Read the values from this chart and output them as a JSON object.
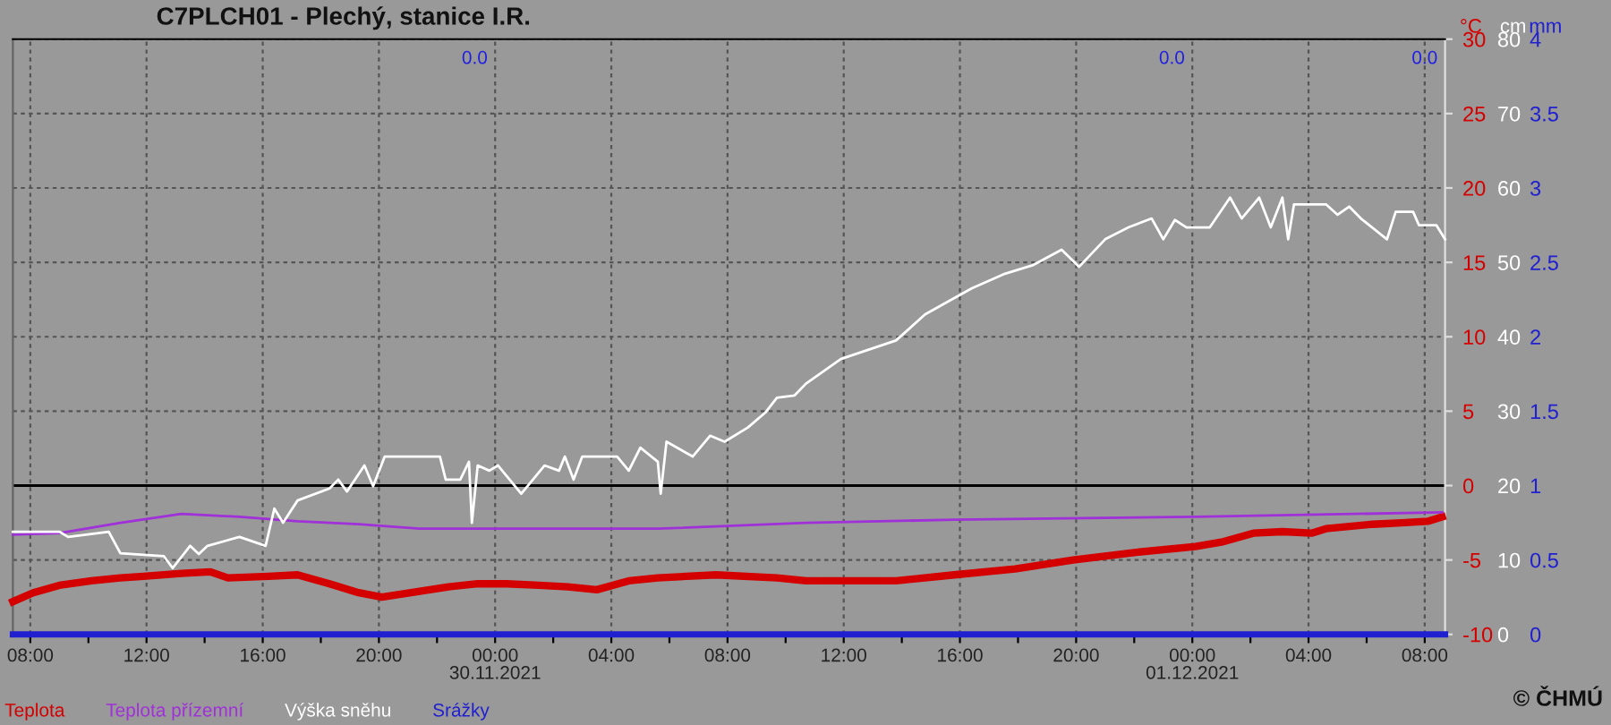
{
  "chart_data": {
    "type": "line",
    "title": "C7PLCH01 - Plechý, stanice I.R.",
    "ylabel": "°C",
    "y2label": "cm",
    "y3label": "mm",
    "xlim": [
      "2021-11-29T07:24",
      "2021-12-01T08:42"
    ],
    "xticks": [
      {
        "value": "2021-11-29T08:00",
        "label": "08:00"
      },
      {
        "value": "2021-11-29T10:00",
        "label": null
      },
      {
        "value": "2021-11-29T12:00",
        "label": "12:00"
      },
      {
        "value": "2021-11-29T14:00",
        "label": null
      },
      {
        "value": "2021-11-29T16:00",
        "label": "16:00"
      },
      {
        "value": "2021-11-29T18:00",
        "label": null
      },
      {
        "value": "2021-11-29T20:00",
        "label": "20:00"
      },
      {
        "value": "2021-11-29T22:00",
        "label": null
      },
      {
        "value": "2021-11-30T00:00",
        "label": "00:00\n30.11.2021"
      },
      {
        "value": "2021-11-30T02:00",
        "label": null
      },
      {
        "value": "2021-11-30T04:00",
        "label": "04:00"
      },
      {
        "value": "2021-11-30T06:00",
        "label": null
      },
      {
        "value": "2021-11-30T08:00",
        "label": "08:00"
      },
      {
        "value": "2021-11-30T10:00",
        "label": null
      },
      {
        "value": "2021-11-30T12:00",
        "label": "12:00"
      },
      {
        "value": "2021-11-30T14:00",
        "label": null
      },
      {
        "value": "2021-11-30T16:00",
        "label": "16:00"
      },
      {
        "value": "2021-11-30T18:00",
        "label": null
      },
      {
        "value": "2021-11-30T20:00",
        "label": "20:00"
      },
      {
        "value": "2021-11-30T22:00",
        "label": null
      },
      {
        "value": "2021-12-01T00:00",
        "label": "00:00\n01.12.2021"
      },
      {
        "value": "2021-12-01T02:00",
        "label": null
      },
      {
        "value": "2021-12-01T04:00",
        "label": "04:00"
      },
      {
        "value": "2021-12-01T06:00",
        "label": null
      },
      {
        "value": "2021-12-01T08:00",
        "label": "08:00"
      }
    ],
    "ylim": [
      -10,
      30
    ],
    "yticks": [
      -10,
      -5,
      0,
      5,
      10,
      15,
      20,
      25,
      30
    ],
    "y2lim": [
      0,
      80
    ],
    "y2ticks": [
      0,
      10,
      20,
      30,
      40,
      50,
      60,
      70,
      80
    ],
    "y3lim": [
      0,
      4
    ],
    "y3ticks": [
      0,
      0.5,
      1,
      1.5,
      2,
      2.5,
      3,
      3.5,
      4
    ],
    "grid": true,
    "legend": "bottom",
    "marker": "none",
    "line_style": "solid",
    "ref_lines": [
      {
        "axis": "y",
        "value": 0,
        "color": "#000000"
      }
    ],
    "annotations": [
      "0.0",
      "0.0",
      "0.0",
      "© ČHMÚ"
    ],
    "series": [
      {
        "name": "Teplota",
        "color": "#d40000",
        "axis": "y",
        "x": [
          "2021-11-29T07:24",
          "2021-11-29T08:06",
          "2021-11-29T09:00",
          "2021-11-29T10:06",
          "2021-11-29T11:06",
          "2021-11-29T11:54",
          "2021-11-29T13:12",
          "2021-11-29T14:12",
          "2021-11-29T14:48",
          "2021-11-29T16:12",
          "2021-11-29T17:12",
          "2021-11-29T18:18",
          "2021-11-29T19:18",
          "2021-11-29T20:06",
          "2021-11-29T21:24",
          "2021-11-29T22:24",
          "2021-11-29T23:24",
          "2021-11-30T00:24",
          "2021-11-30T01:30",
          "2021-11-30T02:30",
          "2021-11-30T03:30",
          "2021-11-30T04:36",
          "2021-11-30T05:36",
          "2021-11-30T07:36",
          "2021-11-30T09:42",
          "2021-11-30T10:42",
          "2021-11-30T13:48",
          "2021-11-30T15:48",
          "2021-11-30T17:54",
          "2021-11-30T19:54",
          "2021-11-30T22:00",
          "2021-12-01T00:06",
          "2021-12-01T01:00",
          "2021-12-01T02:06",
          "2021-12-01T03:06",
          "2021-12-01T04:06",
          "2021-12-01T04:36",
          "2021-12-01T06:12",
          "2021-12-01T07:12",
          "2021-12-01T08:06",
          "2021-12-01T08:36"
        ],
        "values": [
          -7.8,
          -7.2,
          -6.7,
          -6.4,
          -6.2,
          -6.1,
          -5.9,
          -5.8,
          -6.2,
          -6.1,
          -6.0,
          -6.6,
          -7.2,
          -7.5,
          -7.1,
          -6.8,
          -6.6,
          -6.6,
          -6.7,
          -6.8,
          -7.0,
          -6.4,
          -6.2,
          -6.0,
          -6.2,
          -6.4,
          -6.4,
          -6.0,
          -5.6,
          -5.0,
          -4.5,
          -4.1,
          -3.8,
          -3.2,
          -3.1,
          -3.2,
          -2.9,
          -2.6,
          -2.5,
          -2.4,
          -2.1
        ]
      },
      {
        "name": "Teplota přízemní",
        "color": "#a030d8",
        "axis": "y",
        "x": [
          "2021-11-29T07:24",
          "2021-11-29T09:00",
          "2021-11-29T11:06",
          "2021-11-29T13:12",
          "2021-11-29T15:12",
          "2021-11-29T17:12",
          "2021-11-29T19:18",
          "2021-11-29T21:24",
          "2021-11-30T01:30",
          "2021-11-30T05:36",
          "2021-11-30T10:42",
          "2021-11-30T15:48",
          "2021-12-01T00:06",
          "2021-12-01T08:36"
        ],
        "values": [
          -3.3,
          -3.2,
          -2.5,
          -1.9,
          -2.1,
          -2.4,
          -2.6,
          -2.9,
          -2.9,
          -2.9,
          -2.5,
          -2.3,
          -2.1,
          -1.8
        ]
      },
      {
        "name": "Výška sněhu",
        "color": "#ffffff",
        "axis": "y2",
        "x": [
          "2021-11-29T07:24",
          "2021-11-29T09:00",
          "2021-11-29T09:18",
          "2021-11-29T10:42",
          "2021-11-29T11:06",
          "2021-11-29T12:36",
          "2021-11-29T12:54",
          "2021-11-29T13:30",
          "2021-11-29T13:48",
          "2021-11-29T14:06",
          "2021-11-29T15:12",
          "2021-11-29T16:06",
          "2021-11-29T16:24",
          "2021-11-29T16:42",
          "2021-11-29T17:12",
          "2021-11-29T18:18",
          "2021-11-29T18:36",
          "2021-11-29T18:54",
          "2021-11-29T19:30",
          "2021-11-29T19:48",
          "2021-11-29T20:12",
          "2021-11-29T22:06",
          "2021-11-29T22:18",
          "2021-11-29T22:48",
          "2021-11-29T23:06",
          "2021-11-29T23:12",
          "2021-11-29T23:24",
          "2021-11-29T23:48",
          "2021-11-30T00:06",
          "2021-11-30T00:54",
          "2021-11-30T01:42",
          "2021-11-30T02:12",
          "2021-11-30T02:24",
          "2021-11-30T02:42",
          "2021-11-30T03:00",
          "2021-11-30T04:12",
          "2021-11-30T04:36",
          "2021-11-30T05:00",
          "2021-11-30T05:36",
          "2021-11-30T05:42",
          "2021-11-30T05:54",
          "2021-11-30T06:48",
          "2021-11-30T07:24",
          "2021-11-30T07:54",
          "2021-11-30T08:42",
          "2021-11-30T09:18",
          "2021-11-30T09:42",
          "2021-11-30T10:18",
          "2021-11-30T10:42",
          "2021-11-30T11:54",
          "2021-11-30T13:48",
          "2021-11-30T14:48",
          "2021-11-30T16:24",
          "2021-11-30T17:30",
          "2021-11-30T18:30",
          "2021-11-30T19:30",
          "2021-11-30T20:06",
          "2021-11-30T21:00",
          "2021-11-30T21:48",
          "2021-11-30T22:36",
          "2021-11-30T23:00",
          "2021-11-30T23:24",
          "2021-11-30T23:48",
          "2021-12-01T00:36",
          "2021-12-01T01:18",
          "2021-12-01T01:42",
          "2021-12-01T02:18",
          "2021-12-01T02:42",
          "2021-12-01T03:06",
          "2021-12-01T03:18",
          "2021-12-01T03:30",
          "2021-12-01T04:36",
          "2021-12-01T05:00",
          "2021-12-01T05:24",
          "2021-12-01T05:48",
          "2021-12-01T06:42",
          "2021-12-01T07:00",
          "2021-12-01T07:36",
          "2021-12-01T07:48",
          "2021-12-01T08:24",
          "2021-12-01T08:42"
        ],
        "values": [
          13.8,
          13.8,
          13.1,
          13.8,
          10.9,
          10.5,
          8.9,
          11.9,
          10.8,
          11.9,
          13.1,
          11.9,
          16.9,
          15.0,
          18.0,
          19.6,
          20.8,
          19.2,
          22.7,
          19.9,
          23.9,
          23.9,
          20.8,
          20.8,
          23.2,
          15.0,
          22.7,
          22.0,
          22.7,
          18.9,
          22.7,
          22.0,
          23.9,
          20.8,
          23.9,
          23.9,
          22.0,
          25.1,
          23.2,
          18.9,
          25.9,
          23.9,
          26.7,
          25.9,
          27.8,
          29.8,
          31.8,
          32.1,
          33.7,
          37.0,
          39.5,
          43.0,
          46.5,
          48.4,
          49.6,
          51.7,
          49.4,
          53.1,
          54.7,
          55.9,
          53.1,
          55.7,
          54.7,
          54.7,
          58.7,
          55.9,
          58.7,
          54.7,
          58.7,
          53.1,
          57.8,
          57.8,
          56.4,
          57.5,
          55.9,
          53.1,
          56.8,
          56.8,
          55.0,
          55.0,
          53.1
        ]
      },
      {
        "name": "Srážky",
        "color": "#2020d0",
        "axis": "y3",
        "x": [
          "2021-11-29T07:24",
          "2021-12-01T08:42"
        ],
        "values": [
          0,
          0
        ]
      }
    ]
  }
}
